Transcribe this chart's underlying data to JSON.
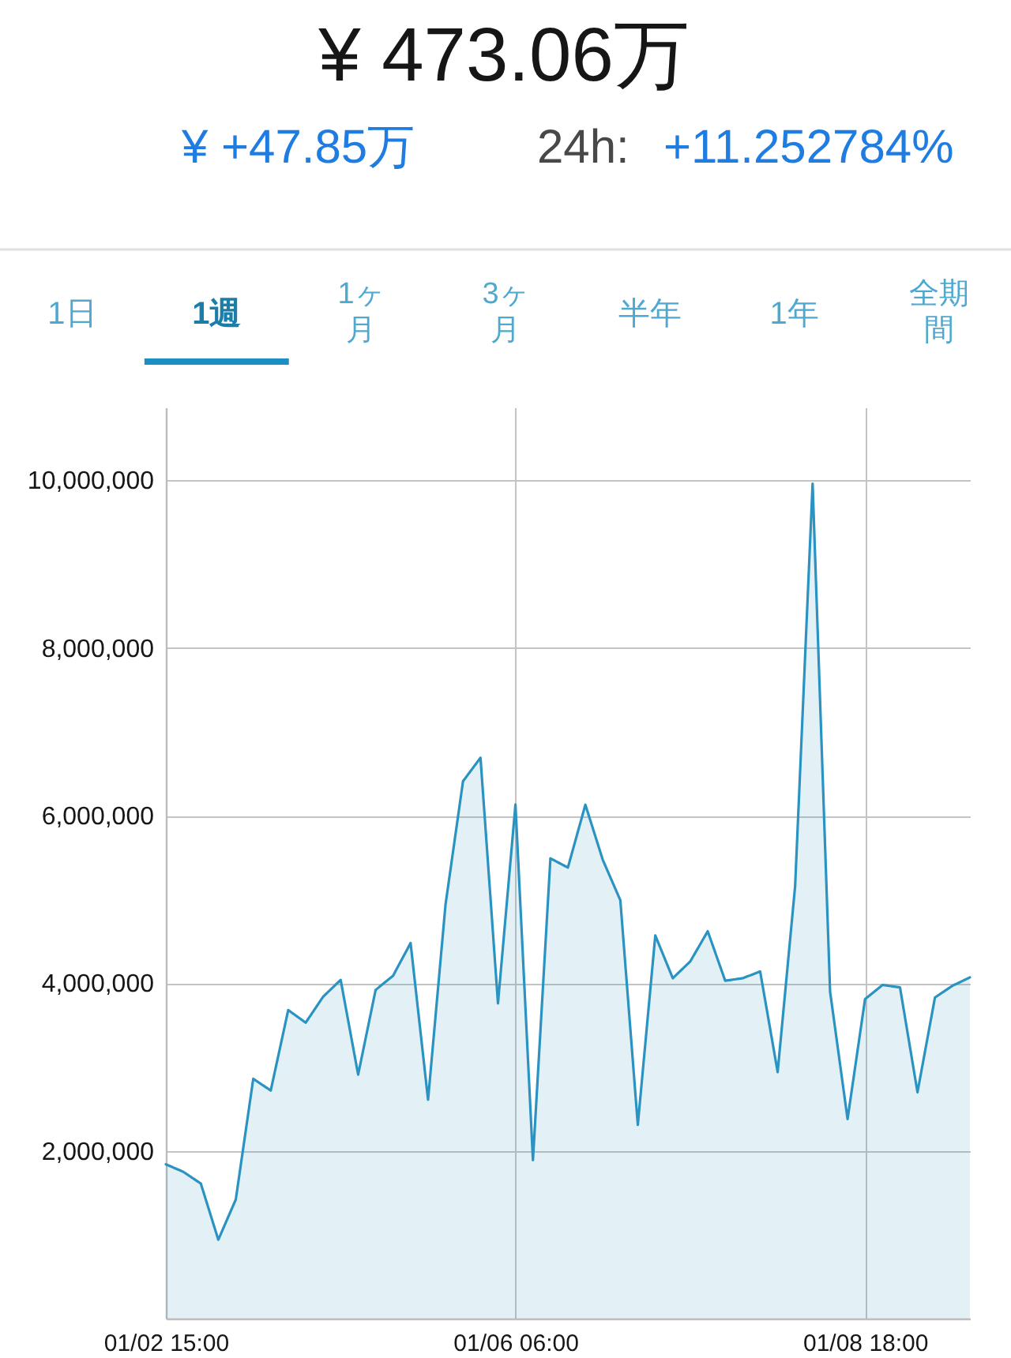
{
  "chart_data": {
    "type": "area",
    "title": "¥ 473.06万",
    "annotations": [
      "¥ +47.85万",
      "24h:",
      "+11.252784%",
      "1日",
      "1週",
      "1ヶ月",
      "3ヶ月",
      "半年",
      "1年",
      "全期間"
    ],
    "categories": [
      "01/02 15:00",
      null,
      null,
      null,
      null,
      null,
      null,
      null,
      null,
      null,
      null,
      null,
      null,
      null,
      null,
      null,
      null,
      null,
      null,
      null,
      "01/06 06:00",
      null,
      null,
      null,
      null,
      null,
      null,
      null,
      null,
      null,
      null,
      null,
      null,
      null,
      null,
      null,
      null,
      null,
      null,
      null,
      "01/08 18:00",
      null,
      null,
      null,
      null,
      null,
      null
    ],
    "series": [
      {
        "color": "#2a93c1",
        "values": [
          1840000,
          1750000,
          1610000,
          940000,
          1420000,
          2860000,
          2720000,
          3680000,
          3530000,
          3840000,
          4040000,
          2910000,
          3920000,
          4090000,
          4480000,
          2610000,
          4940000,
          6410000,
          6690000,
          3760000,
          6130000,
          1890000,
          5490000,
          5380000,
          6130000,
          5470000,
          4990000,
          2310000,
          4570000,
          4060000,
          4260000,
          4620000,
          4030000,
          4060000,
          4140000,
          2940000,
          5160000,
          9960000,
          3900000,
          2380000,
          3810000,
          3980000,
          3950000,
          2700000,
          3830000,
          3970000,
          4070000
        ]
      }
    ],
    "ylim": [
      0,
      10870000
    ],
    "yticks": [
      {
        "value": 2000000,
        "label": "2,000,000"
      },
      {
        "value": 4000000,
        "label": "4,000,000"
      },
      {
        "value": 6000000,
        "label": "6,000,000"
      },
      {
        "value": 8000000,
        "label": "8,000,000"
      },
      {
        "value": 10000000,
        "label": "10,000,000"
      }
    ],
    "grid": true
  }
}
